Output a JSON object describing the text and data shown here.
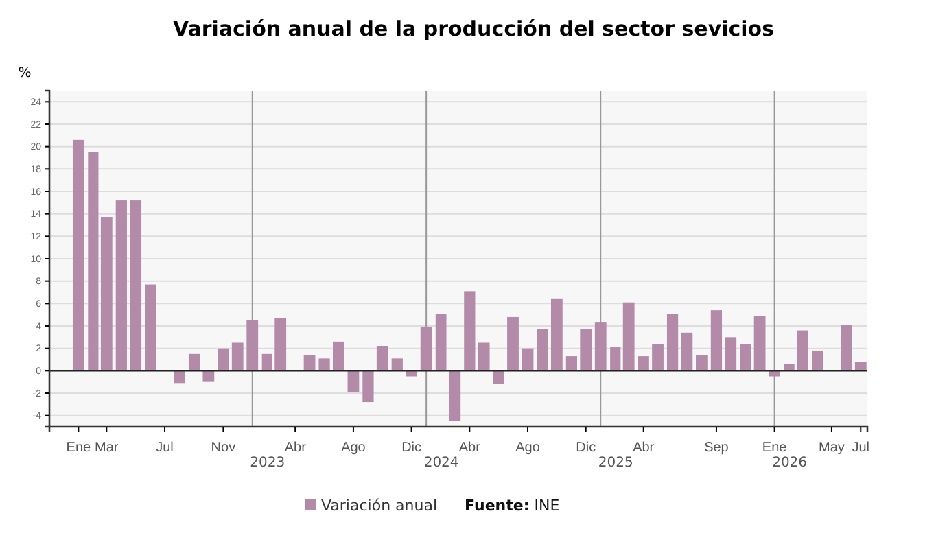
{
  "chart_data": {
    "type": "bar",
    "title": "Variación anual de la producción del sector sevicios",
    "ylabel": "%",
    "x": [
      "2022-01",
      "2022-02",
      "2022-03",
      "2022-04",
      "2022-05",
      "2022-06",
      "2022-07",
      "2022-08",
      "2022-09",
      "2022-10",
      "2022-11",
      "2022-12",
      "2023-01",
      "2023-02",
      "2023-03",
      "2023-04",
      "2023-05",
      "2023-06",
      "2023-07",
      "2023-08",
      "2023-09",
      "2023-10",
      "2023-11",
      "2023-12",
      "2024-01",
      "2024-02",
      "2024-03",
      "2024-04",
      "2024-05",
      "2024-06",
      "2024-07",
      "2024-08",
      "2024-09",
      "2024-10",
      "2024-11",
      "2024-12",
      "2025-01",
      "2025-02",
      "2025-03",
      "2025-04",
      "2025-05",
      "2025-06",
      "2025-07",
      "2025-08",
      "2025-09",
      "2025-10",
      "2025-11",
      "2025-12",
      "2026-01",
      "2026-02",
      "2026-03",
      "2026-04",
      "2026-05",
      "2026-06",
      "2026-07"
    ],
    "series": [
      {
        "name": "Variación anual",
        "color": "#b48aa9",
        "values": [
          20.6,
          19.5,
          13.7,
          15.2,
          15.2,
          7.7,
          null,
          -1.1,
          1.5,
          -1.0,
          2.0,
          2.5,
          4.5,
          1.5,
          4.7,
          null,
          1.4,
          1.1,
          2.6,
          -1.9,
          -2.8,
          2.2,
          1.1,
          -0.5,
          3.9,
          5.1,
          -4.5,
          7.1,
          2.5,
          -1.2,
          4.8,
          2.0,
          3.7,
          6.4,
          1.3,
          3.7,
          4.3,
          2.1,
          6.1,
          1.3,
          2.4,
          5.1,
          3.4,
          1.4,
          5.4,
          3.0,
          2.4,
          4.9,
          -0.5,
          0.6,
          3.6,
          1.8,
          null,
          4.1,
          0.8
        ]
      }
    ],
    "xlim": [
      "2021-11-01",
      "2026-07-15"
    ],
    "xticks": [
      {
        "value": "2022-01",
        "label": "Ene"
      },
      {
        "value": "2022-03",
        "label": "Mar"
      },
      {
        "value": "2022-07",
        "label": "Jul"
      },
      {
        "value": "2022-11",
        "label": "Nov"
      },
      {
        "value": "2023-04",
        "label": "Abr"
      },
      {
        "value": "2023-08",
        "label": "Ago"
      },
      {
        "value": "2023-12",
        "label": "Dic"
      },
      {
        "value": "2024-04",
        "label": "Abr"
      },
      {
        "value": "2024-08",
        "label": "Ago"
      },
      {
        "value": "2024-12",
        "label": "Dic"
      },
      {
        "value": "2025-04",
        "label": "Abr"
      },
      {
        "value": "2025-09",
        "label": "Sep"
      },
      {
        "value": "2026-01",
        "label": "Ene"
      },
      {
        "value": "2026-05",
        "label": "May"
      },
      {
        "value": "2026-07",
        "label": "Jul"
      }
    ],
    "ylim": [
      -5,
      25
    ],
    "yticks": [
      -4,
      -2,
      0,
      2,
      4,
      6,
      8,
      10,
      12,
      14,
      16,
      18,
      20,
      22,
      24
    ],
    "grid": "y",
    "ref_lines": [
      {
        "axis": "x",
        "value": "2023-01",
        "label": "2023",
        "color": "#999999"
      },
      {
        "axis": "x",
        "value": "2024-01",
        "label": "2024",
        "color": "#999999"
      },
      {
        "axis": "x",
        "value": "2025-01",
        "label": "2025",
        "color": "#999999"
      },
      {
        "axis": "x",
        "value": "2026-01",
        "label": "2026",
        "color": "#999999"
      }
    ],
    "legend": "bottom",
    "annotations": [
      "Fuente: INE"
    ]
  }
}
